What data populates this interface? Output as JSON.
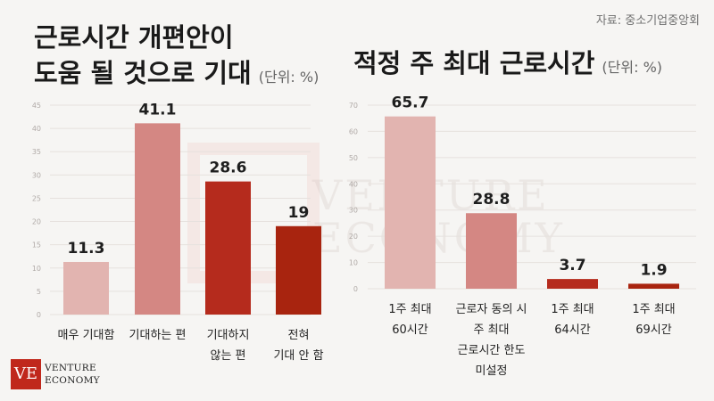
{
  "source": "자료: 중소기업중앙회",
  "left": {
    "title_line1": "근로시간 개편안이",
    "title_line2": "도움 될 것으로 기대",
    "unit": "(단위: %)"
  },
  "right": {
    "title": "적정 주 최대 근로시간",
    "unit": "(단위: %)"
  },
  "watermark": [
    "VENTURE",
    "ECONOMY"
  ],
  "logo": {
    "mark": "VE",
    "line1": "VENTURE",
    "line2": "ECONOMY"
  },
  "chart_data": [
    {
      "type": "bar",
      "title": "근로시간 개편안이 도움 될 것으로 기대",
      "unit": "(단위: %)",
      "categories": [
        "매우 기대함",
        "기대하는 편",
        "기대하지\n않는 편",
        "전혀\n기대 안 함"
      ],
      "values": [
        11.3,
        41.1,
        28.6,
        19
      ],
      "value_labels": [
        "11.3",
        "41.1",
        "28.6",
        "19"
      ],
      "colors": [
        "#e2b4b0",
        "#d48783",
        "#b52b1d",
        "#a8240f"
      ],
      "ylim": [
        0,
        45
      ],
      "yticks": [
        0,
        5,
        10,
        15,
        20,
        25,
        30,
        35,
        40,
        45
      ],
      "grid": true
    },
    {
      "type": "bar",
      "title": "적정 주 최대 근로시간",
      "unit": "(단위: %)",
      "categories": [
        "1주 최대\n60시간",
        "근로자 동의 시\n주 최대\n근로시간 한도\n미설정",
        "1주 최대\n64시간",
        "1주 최대\n69시간"
      ],
      "values": [
        65.7,
        28.8,
        3.7,
        1.9
      ],
      "value_labels": [
        "65.7",
        "28.8",
        "3.7",
        "1.9"
      ],
      "colors": [
        "#e2b4b0",
        "#d48783",
        "#b52b1d",
        "#a8240f"
      ],
      "ylim": [
        0,
        70
      ],
      "yticks": [
        0,
        10,
        20,
        30,
        40,
        50,
        60,
        70
      ],
      "grid": true
    }
  ]
}
